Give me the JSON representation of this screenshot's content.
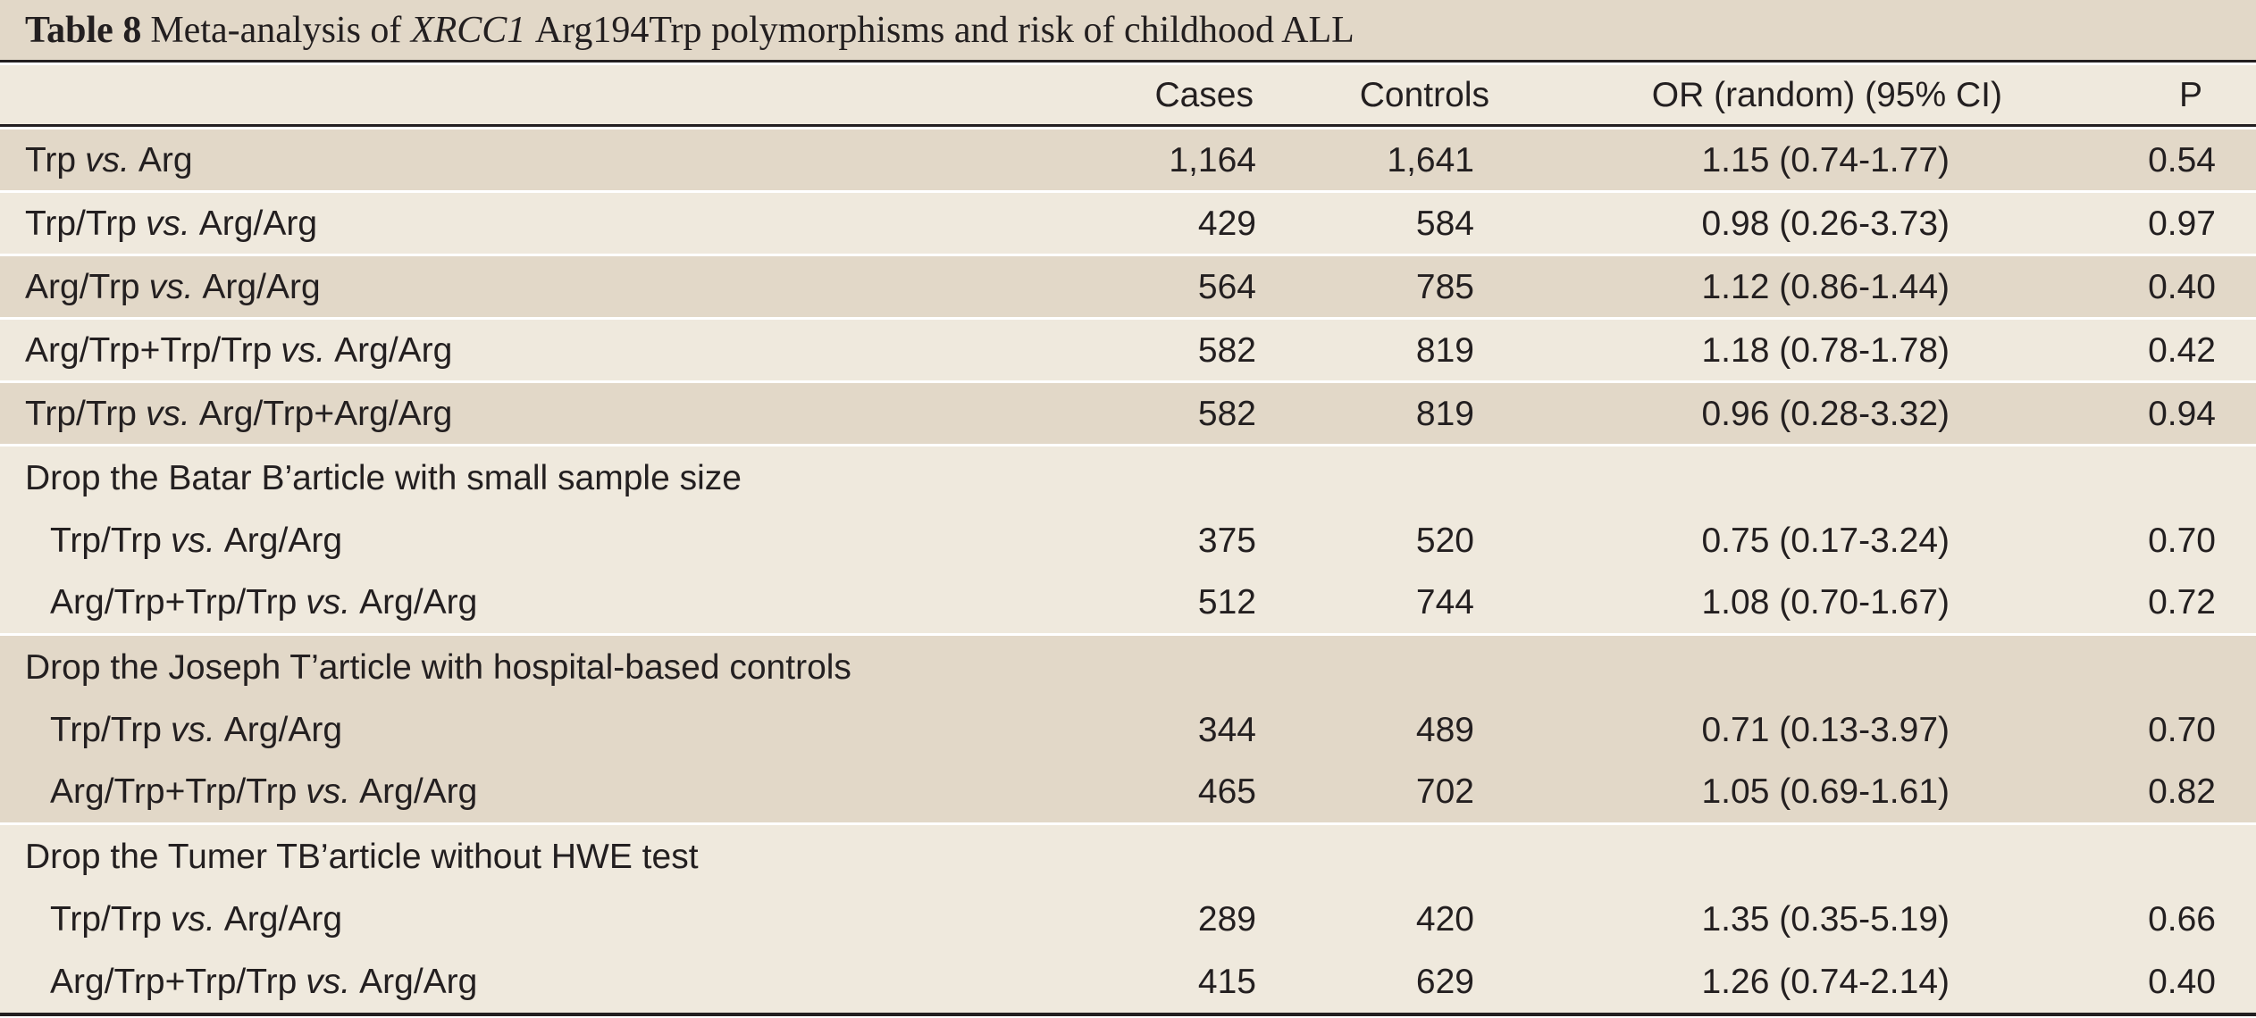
{
  "colors": {
    "dark_band": "#e2d8c8",
    "light_band": "#efe9dd",
    "rule": "#231f20",
    "text": "#231f20",
    "separator": "#ffffff"
  },
  "table": {
    "title": {
      "label": "Table 8",
      "pre": "Meta-analysis of",
      "gene": "XRCC1",
      "post": "Arg194Trp polymorphisms and risk of childhood ALL"
    },
    "headers": {
      "cases": "Cases",
      "controls": "Controls",
      "or": "OR (random) (95% CI)",
      "p": "P"
    },
    "rows": [
      {
        "label_pre": "Trp",
        "vs": "vs.",
        "label_post": "Arg",
        "cases": "1,164",
        "controls": "1,641",
        "or": "1.15 (0.74-1.77)",
        "p": "0.54"
      },
      {
        "label_pre": "Trp/Trp",
        "vs": "vs.",
        "label_post": "Arg/Arg",
        "cases": "429",
        "controls": "584",
        "or": "0.98 (0.26-3.73)",
        "p": "0.97"
      },
      {
        "label_pre": "Arg/Trp",
        "vs": "vs.",
        "label_post": "Arg/Arg",
        "cases": "564",
        "controls": "785",
        "or": "1.12 (0.86-1.44)",
        "p": "0.40"
      },
      {
        "label_pre": "Arg/Trp+Trp/Trp",
        "vs": "vs.",
        "label_post": "Arg/Arg",
        "cases": "582",
        "controls": "819",
        "or": "1.18 (0.78-1.78)",
        "p": "0.42"
      },
      {
        "label_pre": "Trp/Trp",
        "vs": "vs.",
        "label_post": "Arg/Trp+Arg/Arg",
        "cases": "582",
        "controls": "819",
        "or": "0.96 (0.28-3.32)",
        "p": "0.94"
      }
    ],
    "groups": [
      {
        "heading": "Drop the Batar B’article with small sample size",
        "rows": [
          {
            "label_pre": "Trp/Trp",
            "vs": "vs.",
            "label_post": "Arg/Arg",
            "cases": "375",
            "controls": "520",
            "or": "0.75 (0.17-3.24)",
            "p": "0.70"
          },
          {
            "label_pre": "Arg/Trp+Trp/Trp",
            "vs": "vs.",
            "label_post": "Arg/Arg",
            "cases": "512",
            "controls": "744",
            "or": "1.08 (0.70-1.67)",
            "p": "0.72"
          }
        ]
      },
      {
        "heading": "Drop the Joseph T’article with hospital-based controls",
        "rows": [
          {
            "label_pre": "Trp/Trp",
            "vs": "vs.",
            "label_post": "Arg/Arg",
            "cases": "344",
            "controls": "489",
            "or": "0.71 (0.13-3.97)",
            "p": "0.70"
          },
          {
            "label_pre": "Arg/Trp+Trp/Trp",
            "vs": "vs.",
            "label_post": "Arg/Arg",
            "cases": "465",
            "controls": "702",
            "or": "1.05 (0.69-1.61)",
            "p": "0.82"
          }
        ]
      },
      {
        "heading": "Drop the Tumer TB’article without HWE test",
        "rows": [
          {
            "label_pre": "Trp/Trp",
            "vs": "vs.",
            "label_post": "Arg/Arg",
            "cases": "289",
            "controls": "420",
            "or": "1.35 (0.35-5.19)",
            "p": "0.66"
          },
          {
            "label_pre": "Arg/Trp+Trp/Trp",
            "vs": "vs.",
            "label_post": "Arg/Arg",
            "cases": "415",
            "controls": "629",
            "or": "1.26 (0.74-2.14)",
            "p": "0.40"
          }
        ]
      }
    ]
  }
}
